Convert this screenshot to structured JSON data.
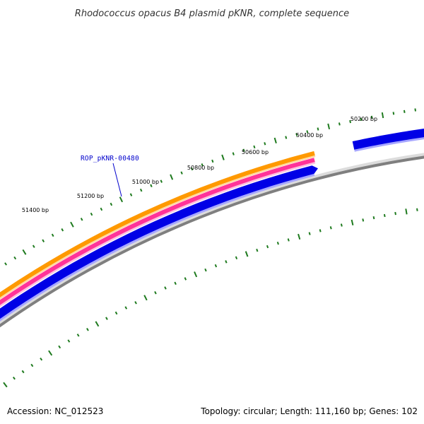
{
  "map": {
    "title": "Rhodococcus opacus B4 plasmid pKNR, complete sequence",
    "scale_labels": [
      "51400 bp",
      "51200 bp",
      "51000 bp",
      "50800 bp",
      "50600 bp",
      "50400 bp",
      "50200 bp"
    ],
    "gene_label": "ROP_pKNR-00480",
    "colors": {
      "tick": "#1e7a1e",
      "backbone": "#7f7f7f",
      "gene_forward": "#0000e6",
      "orange_track": "#ff9900",
      "pink_track": "#ff3399",
      "label": "#0000cc"
    }
  },
  "footer": {
    "accession": "Accession: NC_012523",
    "summary": "Topology: circular; Length: 111,160 bp; Genes: 102"
  }
}
